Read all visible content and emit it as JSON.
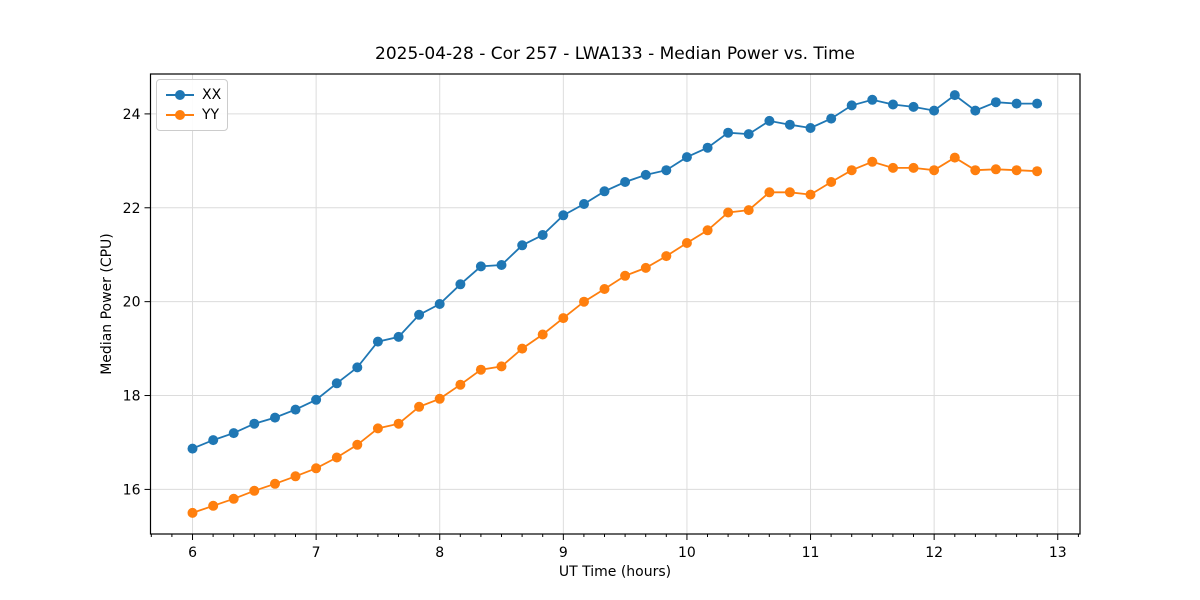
{
  "chart_data": {
    "type": "line",
    "title": "2025-04-28 - Cor 257 - LWA133 - Median Power vs. Time",
    "xlabel": "UT Time (hours)",
    "ylabel": "Median Power (CPU)",
    "xlim": [
      5.66,
      13.18
    ],
    "ylim": [
      15.05,
      24.85
    ],
    "x_ticks": [
      6,
      7,
      8,
      9,
      10,
      11,
      12,
      13
    ],
    "y_ticks": [
      16,
      18,
      20,
      22,
      24
    ],
    "x_minor_step": 0.166667,
    "grid": true,
    "legend_position": "upper left",
    "marker": "circle",
    "x": [
      6.0,
      6.167,
      6.333,
      6.5,
      6.667,
      6.833,
      7.0,
      7.167,
      7.333,
      7.5,
      7.667,
      7.833,
      8.0,
      8.167,
      8.333,
      8.5,
      8.667,
      8.833,
      9.0,
      9.167,
      9.333,
      9.5,
      9.667,
      9.833,
      10.0,
      10.167,
      10.333,
      10.5,
      10.667,
      10.833,
      11.0,
      11.167,
      11.333,
      11.5,
      11.667,
      11.833,
      12.0,
      12.167,
      12.333,
      12.5,
      12.667,
      12.833
    ],
    "series": [
      {
        "name": "XX",
        "color": "#1f77b4",
        "values": [
          16.87,
          17.05,
          17.2,
          17.4,
          17.53,
          17.7,
          17.91,
          18.26,
          18.6,
          19.15,
          19.25,
          19.72,
          19.95,
          20.37,
          20.75,
          20.78,
          21.2,
          21.42,
          21.84,
          22.08,
          22.35,
          22.55,
          22.7,
          22.8,
          23.08,
          23.28,
          23.6,
          23.57,
          23.85,
          23.77,
          23.7,
          23.9,
          24.18,
          24.3,
          24.2,
          24.15,
          24.07,
          24.4,
          24.07,
          24.25,
          24.22,
          24.22
        ]
      },
      {
        "name": "YY",
        "color": "#ff7f0e",
        "values": [
          15.5,
          15.65,
          15.8,
          15.97,
          16.12,
          16.28,
          16.45,
          16.68,
          16.95,
          17.3,
          17.4,
          17.76,
          17.93,
          18.23,
          18.55,
          18.62,
          19.0,
          19.3,
          19.65,
          20.0,
          20.27,
          20.55,
          20.72,
          20.97,
          21.25,
          21.52,
          21.9,
          21.95,
          22.33,
          22.33,
          22.28,
          22.55,
          22.8,
          22.98,
          22.85,
          22.85,
          22.8,
          23.07,
          22.8,
          22.82,
          22.8,
          22.78
        ]
      }
    ],
    "style": {
      "grid_color": "#dcdcdc",
      "spine_color": "#000000",
      "tick_color": "#000000",
      "background": "#ffffff"
    }
  }
}
